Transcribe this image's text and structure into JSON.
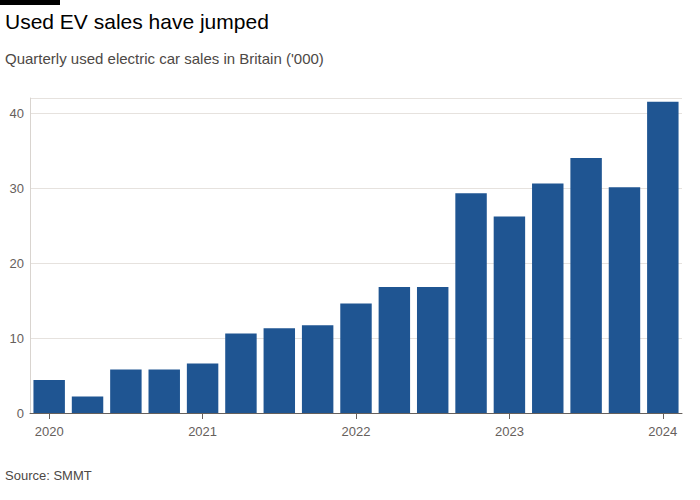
{
  "chart_data": {
    "type": "bar",
    "title": "Used EV sales have jumped",
    "subtitle": "Quarterly used electric car sales in Britain ('000)",
    "source": "Source: SMMT",
    "categories": [
      "2020",
      null,
      null,
      null,
      "2021",
      null,
      null,
      null,
      "2022",
      null,
      null,
      null,
      "2023",
      null,
      null,
      null,
      "2024"
    ],
    "values": [
      4.4,
      2.2,
      5.8,
      5.8,
      6.6,
      10.6,
      11.3,
      11.7,
      14.6,
      16.8,
      16.8,
      29.3,
      26.2,
      30.6,
      34.0,
      30.1,
      41.5
    ],
    "color": "#1f5592",
    "ylim": [
      0,
      42
    ],
    "yticks": [
      0,
      10,
      20,
      30,
      40
    ],
    "grid": true
  }
}
